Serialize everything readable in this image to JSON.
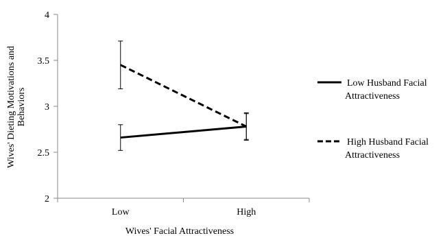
{
  "chart_data": {
    "type": "line",
    "title": "",
    "xlabel": "Wives' Facial Attractiveness",
    "ylabel_lines": [
      "Wives' Dieting Motivations and",
      "Behaviors"
    ],
    "categories": [
      "Low",
      "High"
    ],
    "ylim": [
      2,
      4
    ],
    "yticks": [
      "2",
      "2.5",
      "3",
      "3.5",
      "4"
    ],
    "grid": false,
    "legend_position": "right",
    "series": [
      {
        "name_lines": [
          "Low Husband Facial",
          "Attractiveness"
        ],
        "style": "solid",
        "color": "#000000",
        "values": [
          2.66,
          2.78
        ],
        "error_low": [
          2.52,
          2.63
        ],
        "error_high": [
          2.8,
          2.93
        ]
      },
      {
        "name_lines": [
          "High Husband Facial",
          "Attractiveness"
        ],
        "style": "dashed",
        "color": "#000000",
        "values": [
          3.45,
          2.78
        ],
        "error_low": [
          3.19,
          2.64
        ],
        "error_high": [
          3.71,
          2.92
        ]
      }
    ]
  }
}
